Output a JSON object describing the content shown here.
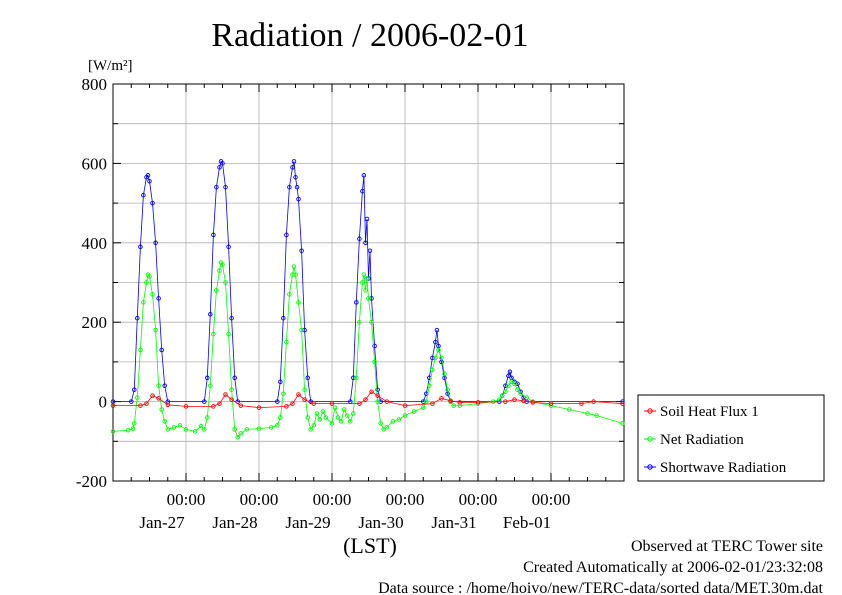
{
  "chart_data": {
    "type": "scatter",
    "title": "Radiation / 2006-02-01",
    "ylabel": "[W/m²]",
    "xlabel": "(LST)",
    "ylim": [
      -200,
      800
    ],
    "yticks": [
      800,
      600,
      400,
      200,
      0,
      -200
    ],
    "xlim": [
      "2006-01-26 00:00",
      "2006-02-02 00:00"
    ],
    "xticks": [
      {
        "time": "00:00",
        "date": "Jan-27"
      },
      {
        "time": "00:00",
        "date": "Jan-28"
      },
      {
        "time": "00:00",
        "date": "Jan-29"
      },
      {
        "time": "00:00",
        "date": "Jan-30"
      },
      {
        "time": "00:00",
        "date": "Jan-31"
      },
      {
        "time": "00:00",
        "date": "Feb-01"
      }
    ],
    "grid": true,
    "legend_position": "right",
    "series": [
      {
        "name": "Soil Heat Flux 1",
        "color": "#ff0000",
        "points": [
          [
            "2006-01-26 00:00",
            -10
          ],
          [
            "2006-01-26 09:00",
            -10
          ],
          [
            "2006-01-26 11:00",
            -5
          ],
          [
            "2006-01-26 13:00",
            15
          ],
          [
            "2006-01-26 15:00",
            8
          ],
          [
            "2006-01-26 18:00",
            -8
          ],
          [
            "2006-01-27 00:00",
            -12
          ],
          [
            "2006-01-27 09:00",
            -12
          ],
          [
            "2006-01-27 11:00",
            -5
          ],
          [
            "2006-01-27 13:00",
            18
          ],
          [
            "2006-01-27 15:00",
            5
          ],
          [
            "2006-01-27 18:00",
            -10
          ],
          [
            "2006-01-28 00:00",
            -15
          ],
          [
            "2006-01-28 09:00",
            -12
          ],
          [
            "2006-01-28 11:00",
            -5
          ],
          [
            "2006-01-28 13:00",
            18
          ],
          [
            "2006-01-28 15:00",
            5
          ],
          [
            "2006-01-28 18:00",
            -5
          ],
          [
            "2006-01-29 00:00",
            -5
          ],
          [
            "2006-01-29 09:00",
            -5
          ],
          [
            "2006-01-29 11:00",
            5
          ],
          [
            "2006-01-29 13:00",
            25
          ],
          [
            "2006-01-29 15:00",
            15
          ],
          [
            "2006-01-29 18:00",
            0
          ],
          [
            "2006-01-30 00:00",
            -10
          ],
          [
            "2006-01-30 09:00",
            -5
          ],
          [
            "2006-01-30 12:00",
            8
          ],
          [
            "2006-01-30 15:00",
            2
          ],
          [
            "2006-01-30 18:00",
            -2
          ],
          [
            "2006-01-31 00:00",
            -2
          ],
          [
            "2006-01-31 09:00",
            0
          ],
          [
            "2006-01-31 12:00",
            5
          ],
          [
            "2006-01-31 15:00",
            2
          ],
          [
            "2006-01-31 18:00",
            -2
          ],
          [
            "2006-02-01 00:00",
            -5
          ],
          [
            "2006-02-01 10:00",
            -5
          ],
          [
            "2006-02-01 14:00",
            0
          ],
          [
            "2006-02-01 23:30",
            -5
          ]
        ]
      },
      {
        "name": "Net Radiation",
        "color": "#00ff00",
        "points": [
          [
            "2006-01-26 00:00",
            -75
          ],
          [
            "2006-01-26 05:00",
            -72
          ],
          [
            "2006-01-26 06:30",
            -68
          ],
          [
            "2006-01-26 07:00",
            -55
          ],
          [
            "2006-01-26 08:00",
            10
          ],
          [
            "2006-01-26 09:00",
            130
          ],
          [
            "2006-01-26 10:00",
            250
          ],
          [
            "2006-01-26 11:00",
            300
          ],
          [
            "2006-01-26 11:30",
            320
          ],
          [
            "2006-01-26 12:00",
            315
          ],
          [
            "2006-01-26 13:00",
            270
          ],
          [
            "2006-01-26 14:00",
            180
          ],
          [
            "2006-01-26 15:00",
            40
          ],
          [
            "2006-01-26 16:00",
            -20
          ],
          [
            "2006-01-26 17:00",
            -50
          ],
          [
            "2006-01-26 18:00",
            -70
          ],
          [
            "2006-01-26 20:00",
            -65
          ],
          [
            "2006-01-26 22:00",
            -60
          ],
          [
            "2006-01-27 00:00",
            -70
          ],
          [
            "2006-01-27 03:00",
            -75
          ],
          [
            "2006-01-27 05:00",
            -62
          ],
          [
            "2006-01-27 06:00",
            -70
          ],
          [
            "2006-01-27 07:00",
            -40
          ],
          [
            "2006-01-27 08:00",
            40
          ],
          [
            "2006-01-27 09:00",
            170
          ],
          [
            "2006-01-27 10:00",
            280
          ],
          [
            "2006-01-27 11:00",
            330
          ],
          [
            "2006-01-27 11:30",
            350
          ],
          [
            "2006-01-27 12:00",
            345
          ],
          [
            "2006-01-27 13:00",
            300
          ],
          [
            "2006-01-27 14:00",
            170
          ],
          [
            "2006-01-27 15:00",
            30
          ],
          [
            "2006-01-27 16:00",
            -70
          ],
          [
            "2006-01-27 17:00",
            -90
          ],
          [
            "2006-01-27 18:00",
            -80
          ],
          [
            "2006-01-27 20:00",
            -70
          ],
          [
            "2006-01-28 00:00",
            -68
          ],
          [
            "2006-01-28 04:00",
            -65
          ],
          [
            "2006-01-28 06:00",
            -60
          ],
          [
            "2006-01-28 07:00",
            -40
          ],
          [
            "2006-01-28 08:00",
            20
          ],
          [
            "2006-01-28 09:00",
            150
          ],
          [
            "2006-01-28 10:00",
            270
          ],
          [
            "2006-01-28 11:00",
            320
          ],
          [
            "2006-01-28 11:30",
            340
          ],
          [
            "2006-01-28 12:00",
            320
          ],
          [
            "2006-01-28 13:00",
            250
          ],
          [
            "2006-01-28 14:00",
            180
          ],
          [
            "2006-01-28 15:00",
            30
          ],
          [
            "2006-01-28 16:00",
            -40
          ],
          [
            "2006-01-28 17:00",
            -70
          ],
          [
            "2006-01-28 18:00",
            -60
          ],
          [
            "2006-01-28 19:00",
            -30
          ],
          [
            "2006-01-28 20:00",
            -45
          ],
          [
            "2006-01-28 21:00",
            -25
          ],
          [
            "2006-01-28 22:00",
            -40
          ],
          [
            "2006-01-29 00:00",
            -55
          ],
          [
            "2006-01-29 01:00",
            -15
          ],
          [
            "2006-01-29 02:00",
            -40
          ],
          [
            "2006-01-29 03:00",
            -50
          ],
          [
            "2006-01-29 04:00",
            -20
          ],
          [
            "2006-01-29 05:00",
            -35
          ],
          [
            "2006-01-29 06:00",
            -50
          ],
          [
            "2006-01-29 07:00",
            -30
          ],
          [
            "2006-01-29 08:00",
            60
          ],
          [
            "2006-01-29 09:00",
            200
          ],
          [
            "2006-01-29 10:00",
            300
          ],
          [
            "2006-01-29 10:30",
            320
          ],
          [
            "2006-01-29 11:00",
            280
          ],
          [
            "2006-01-29 11:30",
            310
          ],
          [
            "2006-01-29 12:00",
            260
          ],
          [
            "2006-01-29 13:00",
            200
          ],
          [
            "2006-01-29 14:00",
            100
          ],
          [
            "2006-01-29 15:00",
            0
          ],
          [
            "2006-01-29 16:00",
            -55
          ],
          [
            "2006-01-29 17:00",
            -70
          ],
          [
            "2006-01-29 18:00",
            -65
          ],
          [
            "2006-01-29 20:00",
            -50
          ],
          [
            "2006-01-29 22:00",
            -45
          ],
          [
            "2006-01-30 00:00",
            -35
          ],
          [
            "2006-01-30 03:00",
            -25
          ],
          [
            "2006-01-30 06:00",
            -15
          ],
          [
            "2006-01-30 07:00",
            0
          ],
          [
            "2006-01-30 08:00",
            40
          ],
          [
            "2006-01-30 09:00",
            80
          ],
          [
            "2006-01-30 10:00",
            110
          ],
          [
            "2006-01-30 11:00",
            130
          ],
          [
            "2006-01-30 12:00",
            110
          ],
          [
            "2006-01-30 13:00",
            70
          ],
          [
            "2006-01-30 14:00",
            30
          ],
          [
            "2006-01-30 15:00",
            0
          ],
          [
            "2006-01-30 16:00",
            -10
          ],
          [
            "2006-01-30 18:00",
            -10
          ],
          [
            "2006-01-31 00:00",
            -5
          ],
          [
            "2006-01-31 05:00",
            0
          ],
          [
            "2006-01-31 07:00",
            5
          ],
          [
            "2006-01-31 08:00",
            15
          ],
          [
            "2006-01-31 09:00",
            25
          ],
          [
            "2006-01-31 10:00",
            40
          ],
          [
            "2006-01-31 11:00",
            50
          ],
          [
            "2006-01-31 12:00",
            45
          ],
          [
            "2006-01-31 13:00",
            30
          ],
          [
            "2006-01-31 14:00",
            20
          ],
          [
            "2006-01-31 16:00",
            10
          ],
          [
            "2006-01-31 18:00",
            0
          ],
          [
            "2006-02-01 00:00",
            -10
          ],
          [
            "2006-02-01 06:00",
            -20
          ],
          [
            "2006-02-01 12:00",
            -30
          ],
          [
            "2006-02-01 15:00",
            -35
          ],
          [
            "2006-02-01 23:30",
            -55
          ]
        ]
      },
      {
        "name": "Shortwave Radiation",
        "color": "#0000ff",
        "points": [
          [
            "2006-01-26 00:00",
            0
          ],
          [
            "2006-01-26 06:00",
            0
          ],
          [
            "2006-01-26 07:00",
            30
          ],
          [
            "2006-01-26 08:00",
            210
          ],
          [
            "2006-01-26 09:00",
            390
          ],
          [
            "2006-01-26 10:00",
            520
          ],
          [
            "2006-01-26 11:00",
            565
          ],
          [
            "2006-01-26 11:30",
            570
          ],
          [
            "2006-01-26 12:00",
            555
          ],
          [
            "2006-01-26 13:00",
            500
          ],
          [
            "2006-01-26 14:00",
            400
          ],
          [
            "2006-01-26 15:00",
            260
          ],
          [
            "2006-01-26 16:00",
            130
          ],
          [
            "2006-01-26 17:00",
            40
          ],
          [
            "2006-01-26 18:00",
            0
          ],
          [
            "2006-01-27 06:00",
            0
          ],
          [
            "2006-01-27 07:00",
            60
          ],
          [
            "2006-01-27 08:00",
            220
          ],
          [
            "2006-01-27 09:00",
            420
          ],
          [
            "2006-01-27 10:00",
            540
          ],
          [
            "2006-01-27 11:00",
            590
          ],
          [
            "2006-01-27 11:30",
            605
          ],
          [
            "2006-01-27 12:00",
            600
          ],
          [
            "2006-01-27 13:00",
            540
          ],
          [
            "2006-01-27 14:00",
            390
          ],
          [
            "2006-01-27 15:00",
            210
          ],
          [
            "2006-01-27 16:00",
            60
          ],
          [
            "2006-01-27 17:00",
            0
          ],
          [
            "2006-01-28 06:00",
            0
          ],
          [
            "2006-01-28 07:00",
            50
          ],
          [
            "2006-01-28 08:00",
            210
          ],
          [
            "2006-01-28 09:00",
            420
          ],
          [
            "2006-01-28 10:00",
            540
          ],
          [
            "2006-01-28 11:00",
            590
          ],
          [
            "2006-01-28 11:30",
            605
          ],
          [
            "2006-01-28 12:00",
            565
          ],
          [
            "2006-01-28 12:30",
            540
          ],
          [
            "2006-01-28 13:00",
            510
          ],
          [
            "2006-01-28 14:00",
            380
          ],
          [
            "2006-01-28 15:00",
            180
          ],
          [
            "2006-01-28 16:00",
            60
          ],
          [
            "2006-01-28 17:00",
            0
          ],
          [
            "2006-01-29 06:00",
            0
          ],
          [
            "2006-01-29 07:00",
            60
          ],
          [
            "2006-01-29 08:00",
            250
          ],
          [
            "2006-01-29 09:00",
            410
          ],
          [
            "2006-01-29 10:00",
            530
          ],
          [
            "2006-01-29 10:30",
            570
          ],
          [
            "2006-01-29 11:00",
            400
          ],
          [
            "2006-01-29 11:30",
            460
          ],
          [
            "2006-01-29 12:00",
            310
          ],
          [
            "2006-01-29 12:30",
            380
          ],
          [
            "2006-01-29 13:00",
            260
          ],
          [
            "2006-01-29 14:00",
            140
          ],
          [
            "2006-01-29 15:00",
            30
          ],
          [
            "2006-01-29 16:00",
            0
          ],
          [
            "2006-01-30 06:00",
            0
          ],
          [
            "2006-01-30 07:00",
            20
          ],
          [
            "2006-01-30 08:00",
            60
          ],
          [
            "2006-01-30 09:00",
            110
          ],
          [
            "2006-01-30 10:00",
            150
          ],
          [
            "2006-01-30 10:30",
            180
          ],
          [
            "2006-01-30 11:00",
            140
          ],
          [
            "2006-01-30 12:00",
            100
          ],
          [
            "2006-01-30 13:00",
            60
          ],
          [
            "2006-01-30 14:00",
            20
          ],
          [
            "2006-01-30 15:00",
            0
          ],
          [
            "2006-01-31 07:00",
            0
          ],
          [
            "2006-01-31 08:00",
            15
          ],
          [
            "2006-01-31 09:00",
            40
          ],
          [
            "2006-01-31 10:00",
            65
          ],
          [
            "2006-01-31 10:30",
            75
          ],
          [
            "2006-01-31 11:00",
            60
          ],
          [
            "2006-01-31 12:00",
            50
          ],
          [
            "2006-01-31 13:00",
            45
          ],
          [
            "2006-01-31 14:00",
            25
          ],
          [
            "2006-01-31 15:00",
            10
          ],
          [
            "2006-01-31 16:00",
            0
          ],
          [
            "2006-02-01 23:30",
            0
          ]
        ]
      }
    ]
  },
  "footer": {
    "site": "Observed at TERC Tower site",
    "created": "Created Automatically at 2006-02-01/23:32:08",
    "source": "Data source : /home/hoivo/new/TERC-data/sorted  data/MET.30m.dat"
  }
}
